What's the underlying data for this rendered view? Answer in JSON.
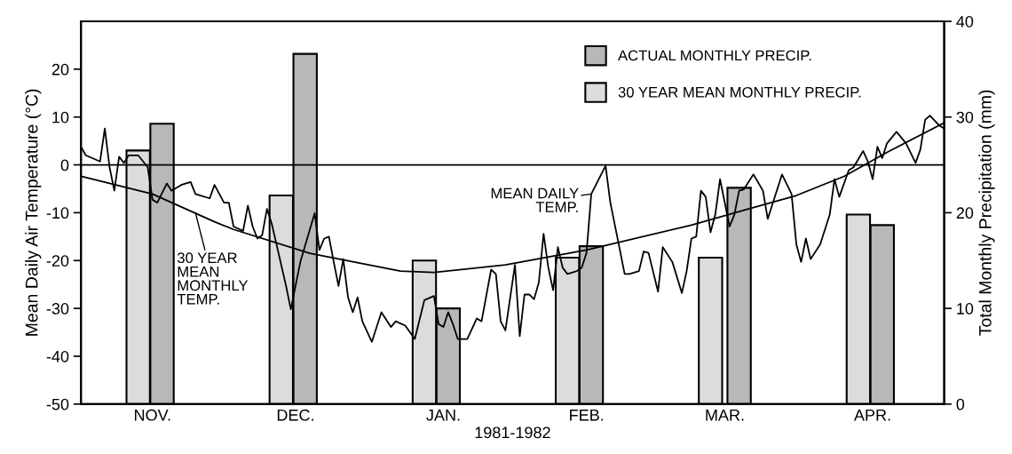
{
  "chart_data": {
    "type": "bar",
    "xlabel": "1981-1982",
    "ylabel": "Mean Daily Air Temperature (°C)",
    "y2label": "Total Monthly Precipitation (mm)",
    "xlim": [
      "1981-11-01",
      "1982-05-01"
    ],
    "xticks": [
      {
        "value": "1981-11-16",
        "label": "NOV."
      },
      {
        "value": "1981-12-16",
        "label": "DEC."
      },
      {
        "value": "1982-01-16",
        "label": "JAN."
      },
      {
        "value": "1982-02-15",
        "label": "FEB."
      },
      {
        "value": "1982-03-16",
        "label": "MAR."
      },
      {
        "value": "1982-04-16",
        "label": "APR."
      }
    ],
    "ylim": [
      -50,
      30
    ],
    "yticks": [
      -50,
      -40,
      -30,
      -20,
      -10,
      0,
      10,
      20
    ],
    "y2lim": [
      0,
      40
    ],
    "y2ticks": [
      0,
      10,
      20,
      30,
      40
    ],
    "legend": "top right",
    "ref_lines": [
      {
        "axis": "y",
        "value": 0,
        "color": "#000000"
      }
    ],
    "series": [
      {
        "axis": "y2",
        "name": "ACTUAL MONTHLY PRECIP.",
        "color": "#b8b8b8",
        "x": [
          "1981-11-18",
          "1981-12-18",
          "1982-01-17",
          "1982-02-16",
          "1982-03-19",
          "1982-04-18"
        ],
        "values": [
          29.3,
          36.6,
          10.0,
          16.5,
          22.6,
          18.7
        ]
      },
      {
        "axis": "y2",
        "name": "30 YEAR MEAN MONTHLY PRECIP.",
        "color": "#dcdcdc",
        "x": [
          "1981-11-13",
          "1981-12-13",
          "1982-01-12",
          "1982-02-11",
          "1982-03-13",
          "1982-04-13"
        ],
        "values": [
          26.5,
          21.8,
          15.0,
          15.3,
          15.3,
          19.8
        ]
      },
      {
        "type": "line",
        "axis": "y",
        "color": "#000000",
        "x": [
          "1981-11-01",
          "1981-11-16",
          "1981-11-29",
          "1981-12-03",
          "1981-12-19",
          "1982-01-07",
          "1982-01-14",
          "1982-01-29",
          "1982-02-15",
          "1982-03-09",
          "1982-03-20",
          "1982-03-31",
          "1982-04-10",
          "1982-04-19",
          "1982-05-01"
        ],
        "values": [
          -2.4,
          -6.1,
          -11.9,
          -13.5,
          -18.5,
          -22.2,
          -22.5,
          -20.9,
          -17.8,
          -12.6,
          -9.5,
          -6.4,
          -2.4,
          2.6,
          8.8
        ]
      },
      {
        "type": "line",
        "axis": "y",
        "color": "#000000",
        "x": [
          "1981-11-01",
          "1981-11-02",
          "1981-11-05",
          "1981-11-06",
          "1981-11-07",
          "1981-11-08",
          "1981-11-09",
          "1981-11-10",
          "1981-11-11",
          "1981-11-13",
          "1981-11-15",
          "1981-11-16",
          "1981-11-17",
          "1981-11-19",
          "1981-11-20",
          "1981-11-21",
          "1981-11-22",
          "1981-11-24",
          "1981-11-25",
          "1981-11-28",
          "1981-11-29",
          "1981-12-01",
          "1981-12-02",
          "1981-12-03",
          "1981-12-05",
          "1981-12-06",
          "1981-12-07",
          "1981-12-08",
          "1981-12-09",
          "1981-12-10",
          "1981-12-11",
          "1981-12-12",
          "1981-12-14",
          "1981-12-15",
          "1981-12-17",
          "1981-12-19",
          "1981-12-20",
          "1981-12-21",
          "1981-12-22",
          "1981-12-23",
          "1981-12-24",
          "1981-12-25",
          "1981-12-26",
          "1981-12-27",
          "1981-12-28",
          "1981-12-29",
          "1981-12-30",
          "1982-01-01",
          "1982-01-03",
          "1982-01-05",
          "1982-01-06",
          "1982-01-08",
          "1982-01-10",
          "1982-01-12",
          "1982-01-14",
          "1982-01-15",
          "1982-01-16",
          "1982-01-17",
          "1982-01-18",
          "1982-01-19",
          "1982-01-21",
          "1982-01-23",
          "1982-01-24",
          "1982-01-26",
          "1982-01-27",
          "1982-01-28",
          "1982-01-29",
          "1982-01-31",
          "1982-02-01",
          "1982-02-02",
          "1982-02-03",
          "1982-02-04",
          "1982-02-05",
          "1982-02-06",
          "1982-02-07",
          "1982-02-08",
          "1982-02-09",
          "1982-02-10",
          "1982-02-11",
          "1982-02-13",
          "1982-02-14",
          "1982-02-15",
          "1982-02-16",
          "1982-02-19",
          "1982-02-20",
          "1982-02-22",
          "1982-02-23",
          "1982-02-24",
          "1982-02-26",
          "1982-02-27",
          "1982-02-28",
          "1982-03-02",
          "1982-03-03",
          "1982-03-05",
          "1982-03-07",
          "1982-03-08",
          "1982-03-09",
          "1982-03-10",
          "1982-03-11",
          "1982-03-12",
          "1982-03-13",
          "1982-03-14",
          "1982-03-15",
          "1982-03-17",
          "1982-03-18",
          "1982-03-19",
          "1982-03-20",
          "1982-03-22",
          "1982-03-24",
          "1982-03-25",
          "1982-03-28",
          "1982-03-30",
          "1982-03-31",
          "1982-04-01",
          "1982-04-02",
          "1982-04-03",
          "1982-04-05",
          "1982-04-07",
          "1982-04-08",
          "1982-04-09",
          "1982-04-11",
          "1982-04-12",
          "1982-04-14",
          "1982-04-15",
          "1982-04-16",
          "1982-04-17",
          "1982-04-18",
          "1982-04-19",
          "1982-04-21",
          "1982-04-23",
          "1982-04-25",
          "1982-04-26",
          "1982-04-27",
          "1982-04-28",
          "1982-04-30",
          "1982-05-01"
        ],
        "values": [
          3.8,
          2.0,
          0.7,
          7.6,
          -0.5,
          -5.4,
          1.7,
          0.4,
          2.0,
          2.0,
          -0.5,
          -7.3,
          -7.9,
          -3.9,
          -5.4,
          -4.8,
          -4.2,
          -3.6,
          -6.1,
          -7.0,
          -4.2,
          -7.9,
          -7.9,
          -12.9,
          -13.8,
          -8.5,
          -12.9,
          -15.4,
          -14.7,
          -9.2,
          -12.3,
          -16.6,
          -25.3,
          -30.2,
          -20.3,
          -13.5,
          -10.1,
          -17.8,
          -15.4,
          -15.0,
          -20.3,
          -25.3,
          -19.7,
          -27.7,
          -30.8,
          -27.7,
          -32.7,
          -37.0,
          -30.8,
          -33.9,
          -32.7,
          -33.6,
          -36.4,
          -28.3,
          -27.4,
          -33.3,
          -33.9,
          -30.8,
          -33.3,
          -36.4,
          -36.4,
          -32.1,
          -32.7,
          -21.9,
          -22.8,
          -32.7,
          -34.6,
          -20.9,
          -35.8,
          -27.1,
          -27.1,
          -28.1,
          -24.6,
          -14.4,
          -21.5,
          -26.2,
          -17.2,
          -21.5,
          -22.8,
          -22.2,
          -21.5,
          -18.4,
          -6.1,
          -0.2,
          -7.9,
          -17.8,
          -22.8,
          -22.8,
          -22.2,
          -18.1,
          -18.4,
          -26.5,
          -17.2,
          -20.3,
          -26.8,
          -22.2,
          -15.4,
          -15.0,
          -5.4,
          -6.7,
          -14.1,
          -10.4,
          -3.0,
          -12.9,
          -10.4,
          -5.4,
          -5.1,
          -2.0,
          -5.4,
          -11.3,
          -2.0,
          -6.1,
          -16.6,
          -20.3,
          -15.4,
          -19.7,
          -16.6,
          -10.4,
          -3.0,
          -6.7,
          -1.1,
          -0.5,
          2.9,
          0.7,
          -3.0,
          3.8,
          1.4,
          4.5,
          6.9,
          4.5,
          0.4,
          3.2,
          9.4,
          10.3,
          8.2,
          7.6
        ]
      }
    ],
    "annotations": [
      {
        "text": "30 YEAR\nMEAN\nMONTHLY\nTEMP.",
        "x": "1981-11-25",
        "y": -10.0
      },
      {
        "text": "MEAN DAILY\nTEMP.",
        "x": "1982-02-16",
        "y": -6.1
      }
    ]
  }
}
